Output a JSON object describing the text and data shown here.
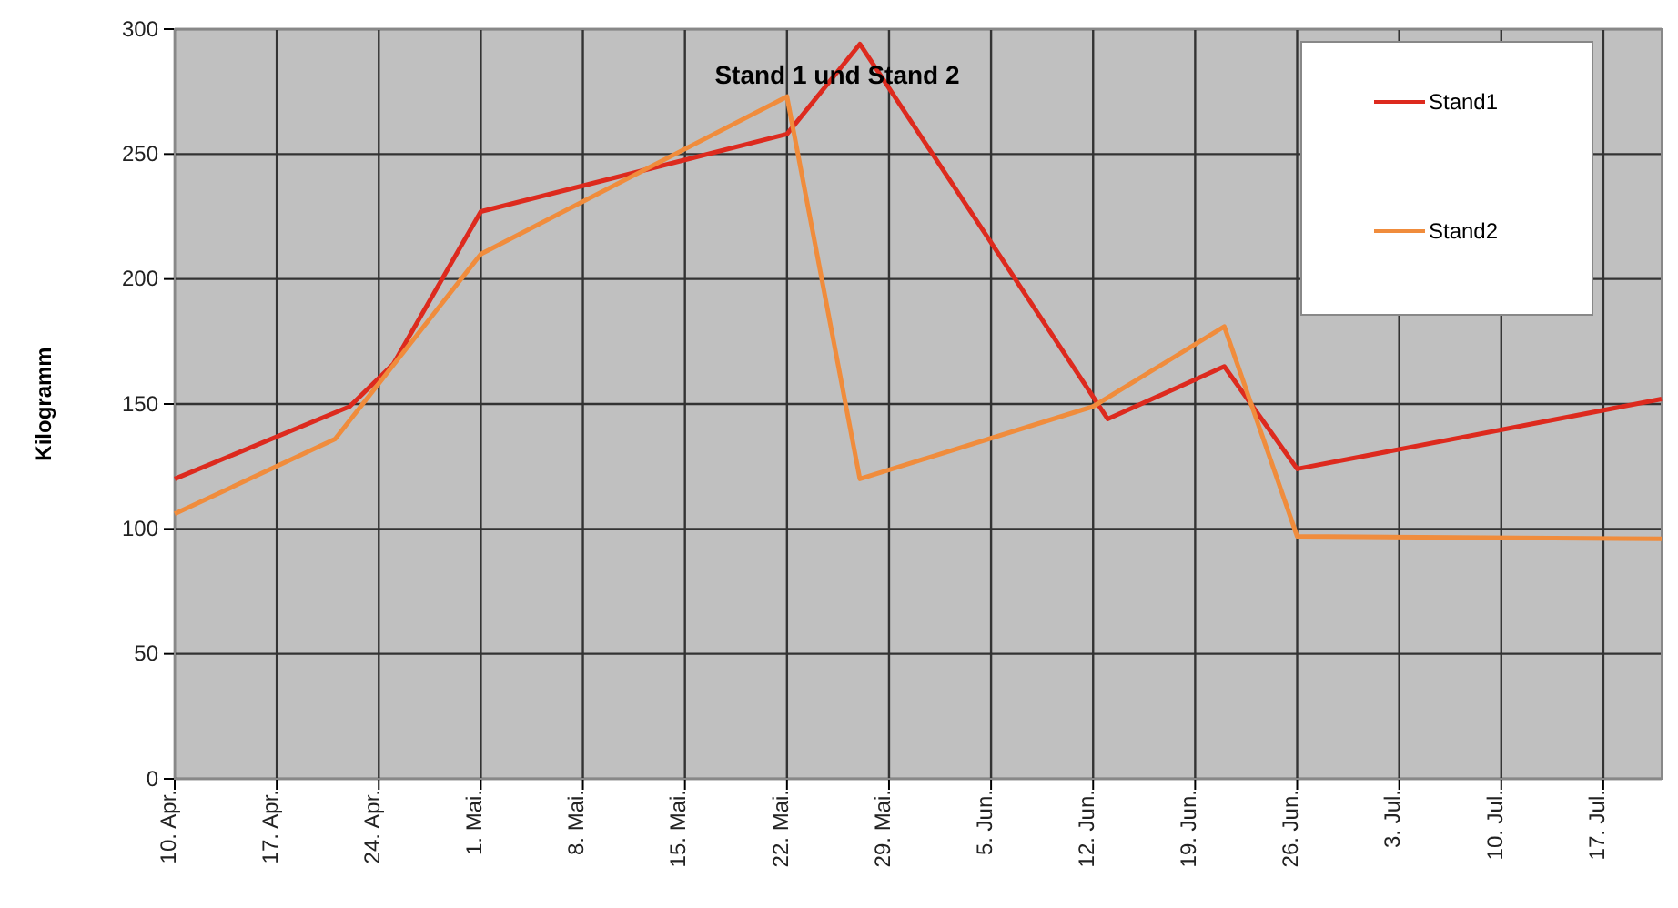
{
  "chart_data": {
    "type": "line",
    "title": "Stand 1 und Stand 2",
    "ylabel": "Kilogramm",
    "xlim": [
      "--04-10",
      "--07-21"
    ],
    "ylim": [
      0,
      300
    ],
    "yticks": [
      0,
      50,
      100,
      150,
      200,
      250,
      300
    ],
    "xticks": [
      {
        "value": "--04-10",
        "label": "10. Apr."
      },
      {
        "value": "--04-17",
        "label": "17. Apr."
      },
      {
        "value": "--04-24",
        "label": "24. Apr."
      },
      {
        "value": "--05-01",
        "label": "1. Mai."
      },
      {
        "value": "--05-08",
        "label": "8. Mai."
      },
      {
        "value": "--05-15",
        "label": "15. Mai."
      },
      {
        "value": "--05-22",
        "label": "22. Mai."
      },
      {
        "value": "--05-29",
        "label": "29. Mai."
      },
      {
        "value": "--06-05",
        "label": "5. Jun."
      },
      {
        "value": "--06-12",
        "label": "12. Jun."
      },
      {
        "value": "--06-19",
        "label": "19. Jun."
      },
      {
        "value": "--06-26",
        "label": "26. Jun."
      },
      {
        "value": "--07-03",
        "label": "3. Jul."
      },
      {
        "value": "--07-10",
        "label": "10. Jul."
      },
      {
        "value": "--07-17",
        "label": "17. Jul."
      }
    ],
    "grid": true,
    "legend": "top right",
    "marker": "none",
    "line_style": "solid",
    "series": [
      {
        "name": "Stand1",
        "color": "#dd2a1e",
        "x": [
          "--04-10",
          "--04-22",
          "--04-25",
          "--05-01",
          "--05-22",
          "--05-27",
          "--06-13",
          "--06-21",
          "--06-26",
          "--07-21"
        ],
        "values": [
          120,
          149,
          166,
          227,
          258,
          294,
          144,
          165,
          124,
          152
        ]
      },
      {
        "name": "Stand2",
        "color": "#f08c3c",
        "x": [
          "--04-10",
          "--04-21",
          "--05-01",
          "--05-22",
          "--05-27",
          "--06-12",
          "--06-21",
          "--06-26",
          "--07-21"
        ],
        "values": [
          106,
          136,
          210,
          273,
          120,
          149,
          181,
          97,
          96
        ]
      }
    ]
  }
}
